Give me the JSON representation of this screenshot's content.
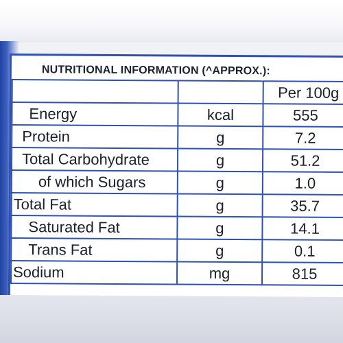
{
  "heading": "NUTRITIONAL INFORMATION (^APPROX.):",
  "per_header": "Per 100g",
  "rows": [
    {
      "name": "Energy",
      "unit": "kcal",
      "value": "555"
    },
    {
      "name": "Protein",
      "unit": "g",
      "value": "7.2"
    },
    {
      "name": "Total Carbohydrate",
      "unit": "g",
      "value": "51.2"
    },
    {
      "name": "of which Sugars",
      "unit": "g",
      "value": "1.0"
    },
    {
      "name": "Total Fat",
      "unit": "g",
      "value": "35.7"
    },
    {
      "name": "Saturated Fat",
      "unit": "g",
      "value": "14.1"
    },
    {
      "name": "Trans Fat",
      "unit": "g",
      "value": "0.1"
    },
    {
      "name": "Sodium",
      "unit": "mg",
      "value": "815"
    }
  ],
  "colors": {
    "border": "#3050b4",
    "text": "#1a1f2b",
    "panel": "#ffffff"
  }
}
